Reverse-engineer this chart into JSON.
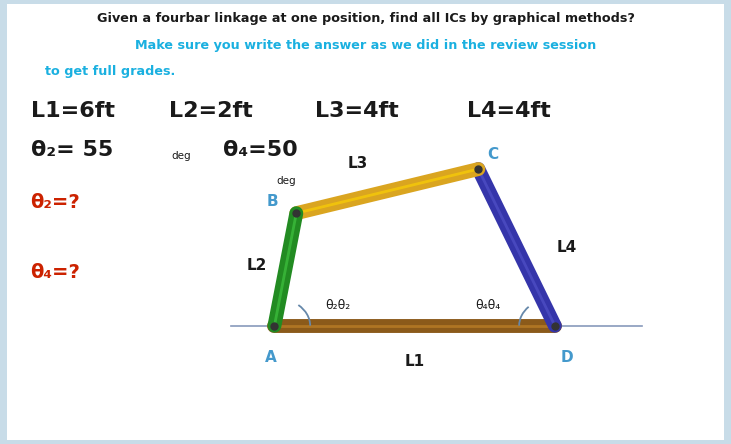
{
  "title_line1": "Given a fourbar linkage at one position, find all ICs by graphical methods?",
  "title_line2": "Make sure you write the answer as we did in the review session",
  "title_line3": "to get full grades.",
  "title_color1": "#1a1a1a",
  "title_color2": "#1ab0e0",
  "link_colors": {
    "L1": "#8B5A1A",
    "L2": "#228B22",
    "L3": "#DAA520",
    "L4": "#3535AA"
  },
  "link_highlight": {
    "L1": "#C8882A",
    "L2": "#44CC44",
    "L3": "#FFD700",
    "L4": "#5555CC"
  },
  "background_color": "#FFFFFF",
  "bg_outer": "#C8DCE8",
  "text_color_black": "#1a1a1a",
  "text_color_blue": "#4499CC",
  "text_color_red": "#CC2200",
  "A": [
    0.375,
    0.265
  ],
  "D": [
    0.76,
    0.265
  ],
  "B": [
    0.405,
    0.52
  ],
  "C": [
    0.655,
    0.62
  ],
  "theta2_deg": 55,
  "theta4_deg": 50
}
